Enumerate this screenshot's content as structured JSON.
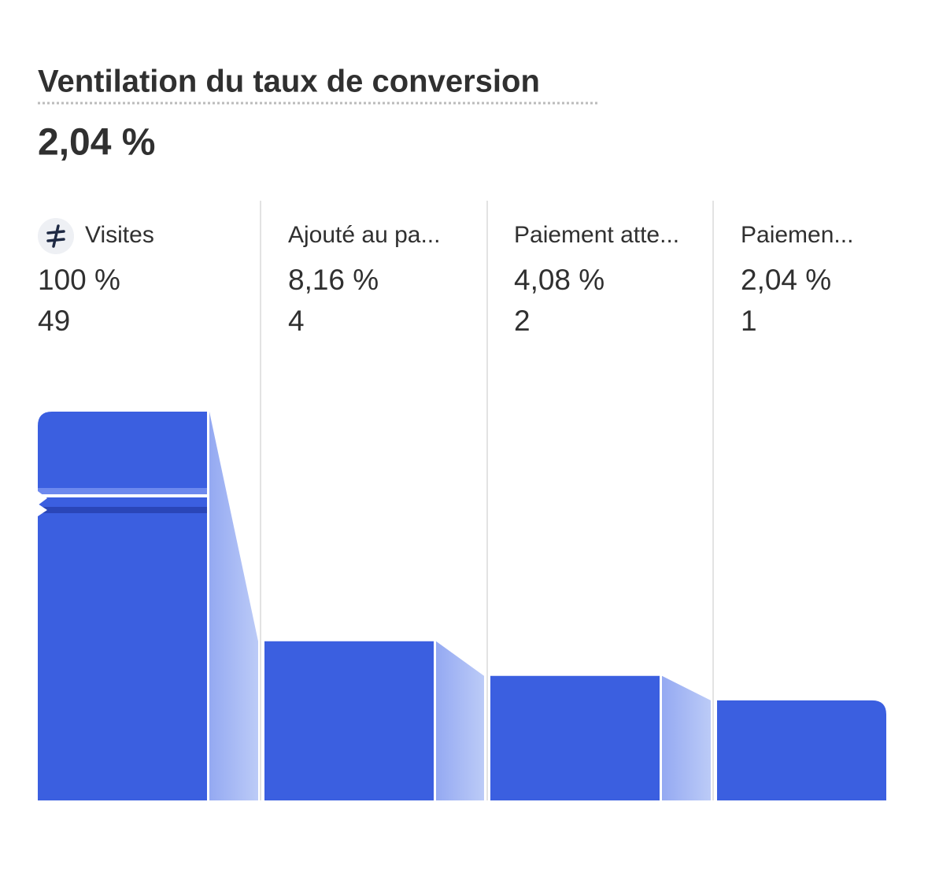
{
  "chart_data": {
    "type": "funnel",
    "title": "Ventilation du taux de conversion",
    "subtitle": "2,04 %",
    "categories": [
      "Visites",
      "Ajouté au pa...",
      "Paiement atte...",
      "Paiemen..."
    ],
    "values": [
      100,
      8.16,
      4.08,
      2.04
    ],
    "value_labels": [
      "100 %",
      "8,16 %",
      "4,08 %",
      "2,04 %"
    ],
    "counts": [
      49,
      4,
      2,
      1
    ],
    "color": "#3b5fe0"
  }
}
